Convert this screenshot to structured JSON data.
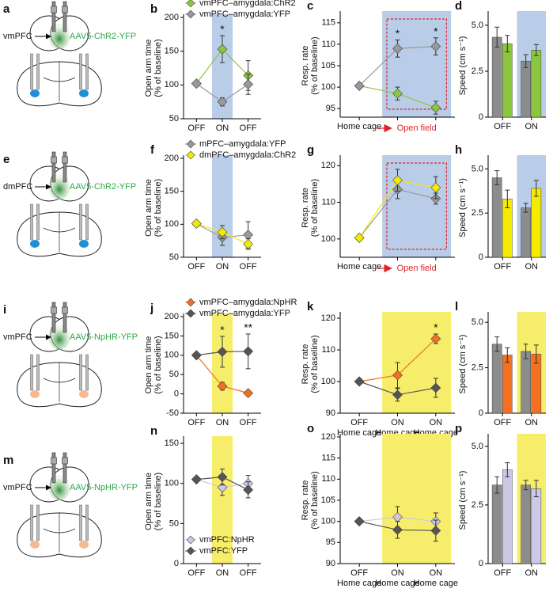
{
  "diagrams": [
    {
      "label": "a",
      "region": "vmPFC",
      "virus": "AAV5-ChR2-YFP",
      "spot_color": "#1f8fd6"
    },
    {
      "label": "e",
      "region": "dmPFC",
      "virus": "AAV5-ChR2-YFP",
      "spot_color": "#1f8fd6"
    },
    {
      "label": "i",
      "region": "vmPFC",
      "virus": "AAV5-NpHR-YFP",
      "spot_color": "#f7b98f"
    },
    {
      "label": "m",
      "region": "vmPFC",
      "virus": "AAV5-NpHR-YFP",
      "spot_color": "#f7b98f"
    }
  ],
  "chart_data": [
    {
      "type": "line",
      "label": "b",
      "ylabel": [
        "Open arm time",
        "(% of baseline)"
      ],
      "categories": [
        "OFF",
        "ON",
        "OFF"
      ],
      "ylim": [
        50,
        200
      ],
      "yticks": [
        50,
        100,
        150,
        200
      ],
      "highlight": [
        1,
        1
      ],
      "highlight_color": "#b9cde9",
      "legend": "upper left",
      "series": [
        {
          "name": "vmPFC–amygdala:ChR2",
          "color": "#8cc63e",
          "values": [
            102,
            153,
            114
          ],
          "errors": [
            null,
            20,
            22
          ]
        },
        {
          "name": "vmPFC–amygdala:YFP",
          "color": "#999999",
          "values": [
            102,
            75,
            101
          ],
          "errors": [
            null,
            6,
            15
          ]
        }
      ],
      "annotations": [
        {
          "text": "*",
          "index": 1
        }
      ]
    },
    {
      "type": "line",
      "label": "c",
      "ylabel": [
        "Resp. rate",
        "(% of baseline)"
      ],
      "categories": [
        "Home cage",
        null,
        null
      ],
      "xnote": "Open field",
      "ylim": [
        93,
        117
      ],
      "yticks": [
        95,
        100,
        105,
        110,
        115
      ],
      "highlight": [
        1,
        2
      ],
      "highlight_color": "#b9cde9",
      "boxed": [
        1,
        2
      ],
      "series": [
        {
          "color": "#8cc63e",
          "values": [
            100.3,
            98.5,
            95.2
          ],
          "errors": [
            null,
            1.5,
            1.5
          ]
        },
        {
          "color": "#999999",
          "values": [
            100.3,
            109,
            109.5
          ],
          "errors": [
            null,
            2,
            2
          ]
        }
      ],
      "annotations": [
        {
          "text": "*",
          "index": 1
        },
        {
          "text": "*",
          "index": 2
        }
      ]
    },
    {
      "type": "bar",
      "label": "d",
      "ylabel": [
        "Speed (cm s⁻¹)"
      ],
      "categories": [
        "OFF",
        "ON"
      ],
      "ylim": [
        0,
        5.6
      ],
      "yticks": [
        0,
        2.5,
        {
          "value": 5,
          "label": "5.0"
        }
      ],
      "highlight": [
        1,
        1
      ],
      "highlight_color": "#b9cde9",
      "series": [
        {
          "color": "#8c8c8c",
          "values": [
            4.35,
            3.05
          ],
          "errors": [
            0.55,
            0.35
          ]
        },
        {
          "color": "#8cc63e",
          "values": [
            4.0,
            3.65
          ],
          "errors": [
            0.45,
            0.3
          ]
        }
      ]
    },
    {
      "type": "line",
      "label": "f",
      "ylabel": [
        "Open arm time",
        "(% of baseline)"
      ],
      "categories": [
        "OFF",
        "ON",
        "OFF"
      ],
      "ylim": [
        50,
        200
      ],
      "yticks": [
        50,
        100,
        150,
        200
      ],
      "highlight": [
        1,
        1
      ],
      "highlight_color": "#b9cde9",
      "legend": "upper left",
      "series": [
        {
          "name": "mPFC–amygdala:YFP",
          "color": "#999999",
          "values": [
            101,
            80,
            84
          ],
          "errors": [
            null,
            12,
            20
          ]
        },
        {
          "name": "dmPFC–amygdala:ChR2",
          "color": "#f5eb00",
          "values": [
            101,
            88,
            70
          ],
          "errors": [
            null,
            10,
            8
          ]
        }
      ]
    },
    {
      "type": "line",
      "label": "g",
      "ylabel": [
        "Resp. rate",
        "(% of baseline)"
      ],
      "categories": [
        "Home cage",
        null,
        null
      ],
      "xnote": "Open field",
      "ylim": [
        95,
        122
      ],
      "yticks": [
        100,
        110,
        120
      ],
      "highlight": [
        1,
        2
      ],
      "highlight_color": "#b9cde9",
      "boxed": [
        1,
        2
      ],
      "series": [
        {
          "color": "#999999",
          "values": [
            100.3,
            113.5,
            111
          ],
          "errors": [
            null,
            2.5,
            1.5
          ]
        },
        {
          "color": "#f5eb00",
          "values": [
            100.3,
            116,
            114
          ],
          "errors": [
            null,
            3,
            3
          ]
        }
      ]
    },
    {
      "type": "bar",
      "label": "h",
      "ylabel": [
        "Speed (cm s⁻¹)"
      ],
      "categories": [
        "OFF",
        "ON"
      ],
      "ylim": [
        0,
        5.6
      ],
      "yticks": [
        0,
        2.5,
        {
          "value": 5,
          "label": "5.0"
        }
      ],
      "highlight": [
        1,
        1
      ],
      "highlight_color": "#b9cde9",
      "series": [
        {
          "color": "#8c8c8c",
          "values": [
            4.5,
            2.8
          ],
          "errors": [
            0.4,
            0.25
          ]
        },
        {
          "color": "#f5eb00",
          "values": [
            3.3,
            3.9
          ],
          "errors": [
            0.5,
            0.45
          ]
        }
      ]
    },
    {
      "type": "line",
      "label": "j",
      "ylabel": [
        "Open arm time",
        "(% of baseline)"
      ],
      "categories": [
        "OFF",
        "ON",
        "OFF"
      ],
      "ylim": [
        -50,
        200
      ],
      "yticks": [
        -50,
        0,
        50,
        100,
        150,
        200
      ],
      "highlight": [
        1,
        1
      ],
      "highlight_color": "#f6ee6a",
      "legend": "upper left",
      "series": [
        {
          "name": "vmPFC–amygdala:NpHR",
          "color": "#f37021",
          "values": [
            100,
            20,
            2
          ],
          "errors": [
            null,
            10,
            5
          ]
        },
        {
          "name": "vmPFC–amygdala:YFP",
          "color": "#555555",
          "values": [
            100,
            109,
            110
          ],
          "errors": [
            null,
            40,
            45
          ]
        }
      ],
      "annotations": [
        {
          "text": "*",
          "index": 1
        },
        {
          "text": "**",
          "index": 2
        }
      ]
    },
    {
      "type": "line",
      "label": "k",
      "ylabel": [
        "Resp. rate",
        "(% of baseline)"
      ],
      "categories": [
        "OFF",
        "ON",
        "ON"
      ],
      "categories2": [
        "Home cage",
        "Home cage",
        "Home cage"
      ],
      "ylim": [
        90,
        121
      ],
      "yticks": [
        90,
        100,
        110,
        120
      ],
      "highlight": [
        1,
        2
      ],
      "highlight_color": "#f6ee6a",
      "series": [
        {
          "color": "#f37021",
          "values": [
            100,
            102,
            113.5
          ],
          "errors": [
            null,
            4,
            1.5
          ]
        },
        {
          "color": "#555555",
          "values": [
            100,
            95.8,
            98
          ],
          "errors": [
            null,
            2,
            3
          ]
        }
      ],
      "annotations": [
        {
          "text": "*",
          "index": 2
        }
      ]
    },
    {
      "type": "bar",
      "label": "l",
      "ylabel": [
        "Speed (cm s⁻¹)"
      ],
      "categories": [
        "OFF",
        "ON"
      ],
      "ylim": [
        0,
        5.4
      ],
      "yticks": [
        0,
        2.5,
        {
          "value": 5,
          "label": "5.0"
        }
      ],
      "highlight": [
        1,
        1
      ],
      "highlight_color": "#f6ee6a",
      "series": [
        {
          "color": "#8c8c8c",
          "values": [
            3.8,
            3.4
          ],
          "errors": [
            0.4,
            0.4
          ]
        },
        {
          "color": "#f37021",
          "values": [
            3.2,
            3.25
          ],
          "errors": [
            0.4,
            0.5
          ]
        }
      ]
    },
    {
      "type": "line",
      "label": "n",
      "ylabel": [
        "Open arm time",
        "(% of baseline)"
      ],
      "categories": [
        "OFF",
        "ON",
        "OFF"
      ],
      "ylim": [
        0,
        155
      ],
      "yticks": [
        0,
        50,
        100,
        150
      ],
      "highlight": [
        1,
        1
      ],
      "highlight_color": "#f6ee6a",
      "legend": "lower left",
      "series": [
        {
          "name": "vmPFC:NpHR",
          "color": "#cdc8e6",
          "values": [
            105,
            95,
            100
          ],
          "errors": [
            null,
            10,
            10
          ]
        },
        {
          "name": "vmPFC:YFP",
          "color": "#555555",
          "values": [
            105,
            108,
            92
          ],
          "errors": [
            null,
            10,
            10
          ]
        }
      ]
    },
    {
      "type": "line",
      "label": "o",
      "ylabel": [
        "Resp. rate",
        "(% of baseline)"
      ],
      "categories": [
        "OFF",
        "ON",
        "ON"
      ],
      "categories2": [
        "Home cage",
        "Home cage",
        "Home cage"
      ],
      "ylim": [
        90,
        120
      ],
      "yticks": [
        90,
        95,
        100,
        105,
        110,
        115,
        120
      ],
      "highlight": [
        1,
        2
      ],
      "highlight_color": "#f6ee6a",
      "series": [
        {
          "color": "#cdc8e6",
          "values": [
            100,
            101,
            100
          ],
          "errors": [
            null,
            2.5,
            2
          ]
        },
        {
          "color": "#555555",
          "values": [
            100,
            98,
            97.8
          ],
          "errors": [
            null,
            2,
            2.5
          ]
        }
      ]
    },
    {
      "type": "bar",
      "label": "p",
      "ylabel": [
        "Speed (cm s⁻¹)"
      ],
      "categories": [
        "OFF",
        "ON"
      ],
      "ylim": [
        0,
        5.4
      ],
      "yticks": [
        0,
        2.5,
        {
          "value": 5,
          "label": "5.0"
        }
      ],
      "highlight": [
        1,
        1
      ],
      "highlight_color": "#f6ee6a",
      "series": [
        {
          "color": "#8c8c8c",
          "values": [
            3.35,
            3.35
          ],
          "errors": [
            0.35,
            0.2
          ]
        },
        {
          "color": "#cdc8e6",
          "values": [
            4.0,
            3.2
          ],
          "errors": [
            0.3,
            0.35
          ]
        }
      ]
    }
  ]
}
